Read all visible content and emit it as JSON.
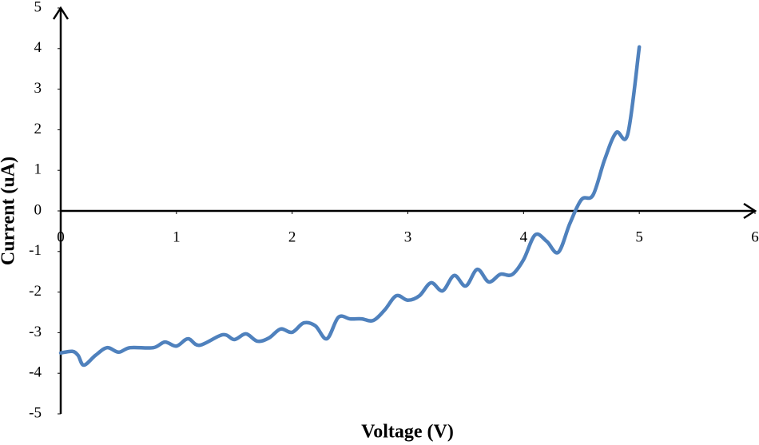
{
  "chart_data": {
    "type": "line",
    "x_label": "Voltage (V)",
    "y_label": "Current (uA)",
    "x": [
      0,
      0.1,
      0.15,
      0.2,
      0.3,
      0.4,
      0.5,
      0.6,
      0.8,
      0.9,
      1.0,
      1.1,
      1.2,
      1.4,
      1.5,
      1.6,
      1.7,
      1.8,
      1.9,
      2.0,
      2.1,
      2.2,
      2.3,
      2.4,
      2.5,
      2.6,
      2.7,
      2.8,
      2.9,
      3.0,
      3.1,
      3.2,
      3.3,
      3.4,
      3.5,
      3.6,
      3.7,
      3.8,
      3.9,
      4.0,
      4.1,
      4.2,
      4.3,
      4.4,
      4.5,
      4.6,
      4.7,
      4.8,
      4.9,
      5.0
    ],
    "series": [
      {
        "name": "Current",
        "color": "#4f81bd",
        "values": [
          -3.5,
          -3.46,
          -3.56,
          -3.8,
          -3.56,
          -3.37,
          -3.48,
          -3.37,
          -3.37,
          -3.23,
          -3.33,
          -3.15,
          -3.31,
          -3.05,
          -3.17,
          -3.03,
          -3.21,
          -3.13,
          -2.91,
          -2.99,
          -2.76,
          -2.83,
          -3.15,
          -2.62,
          -2.66,
          -2.66,
          -2.7,
          -2.44,
          -2.09,
          -2.2,
          -2.09,
          -1.77,
          -1.97,
          -1.59,
          -1.85,
          -1.44,
          -1.75,
          -1.56,
          -1.57,
          -1.2,
          -0.59,
          -0.75,
          -1.02,
          -0.31,
          0.28,
          0.39,
          1.26,
          1.93,
          1.89,
          4.04
        ]
      }
    ],
    "xlim": [
      0,
      6
    ],
    "xticks": [
      0,
      1,
      2,
      3,
      4,
      5,
      6
    ],
    "ylim": [
      -5,
      5
    ],
    "yticks": [
      5,
      4,
      3,
      2,
      1,
      0,
      -1,
      -2,
      -3,
      -4,
      -5
    ]
  }
}
